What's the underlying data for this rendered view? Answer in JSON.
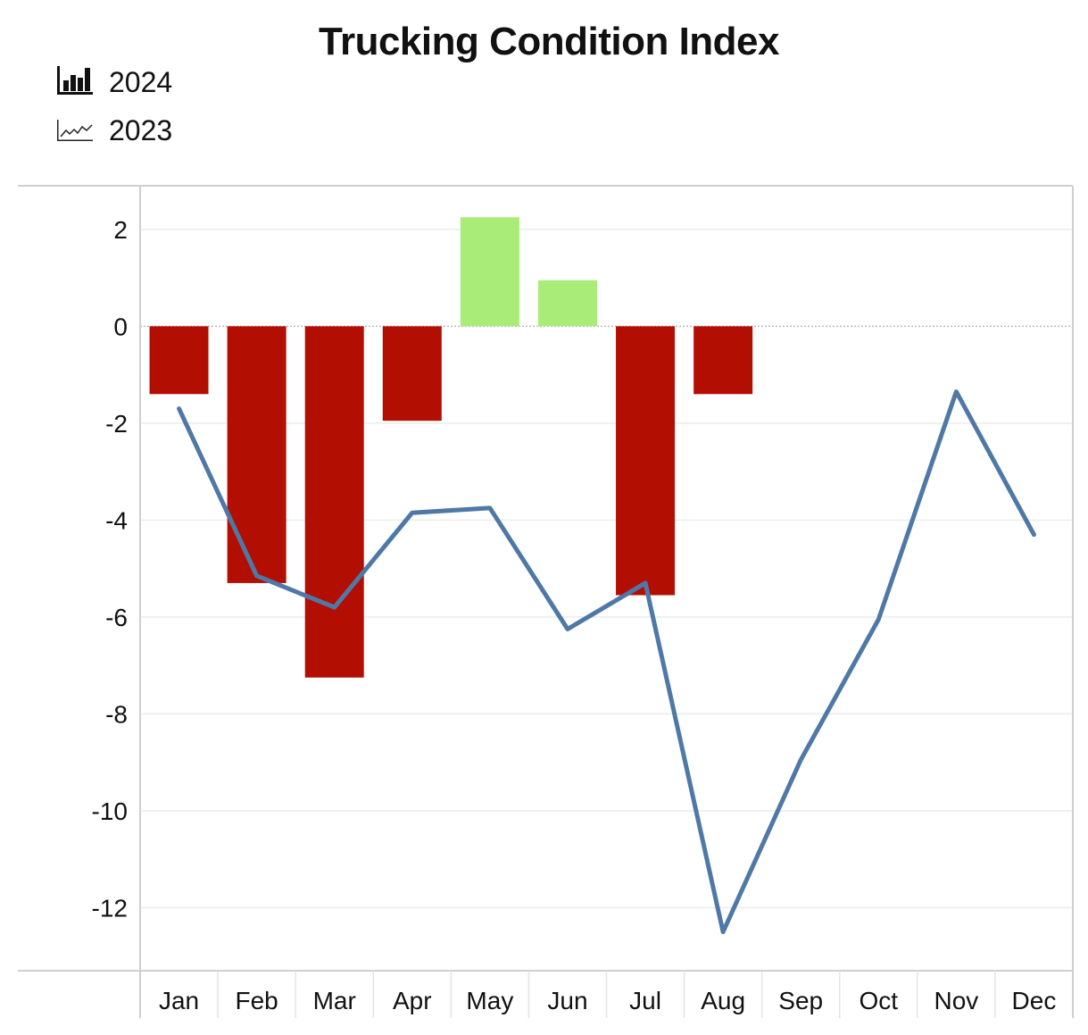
{
  "chart_data": {
    "type": "bar",
    "title": "Trucking Condition Index",
    "categories": [
      "Jan",
      "Feb",
      "Mar",
      "Apr",
      "May",
      "Jun",
      "Jul",
      "Aug",
      "Sep",
      "Oct",
      "Nov",
      "Dec"
    ],
    "series": [
      {
        "name": "2024",
        "type": "bar",
        "values": [
          -1.4,
          -5.3,
          -7.25,
          -1.95,
          2.25,
          0.95,
          -5.55,
          -1.4,
          null,
          null,
          null,
          null
        ]
      },
      {
        "name": "2023",
        "type": "line",
        "values": [
          -1.7,
          -5.15,
          -5.8,
          -3.85,
          -3.75,
          -6.25,
          -5.3,
          -12.5,
          -8.95,
          -6.05,
          -1.35,
          -4.3
        ]
      }
    ],
    "yticks": [
      2,
      0,
      -2,
      -4,
      -6,
      -8,
      -10,
      -12
    ],
    "ylim": [
      -13.3,
      2.9
    ],
    "grid": true,
    "legend_position": "top-left",
    "colors": {
      "positive_bar": "#a9ec78",
      "negative_bar": "#b20f02",
      "line": "#4e79a7",
      "zero_line": "#bbbbbb"
    }
  }
}
